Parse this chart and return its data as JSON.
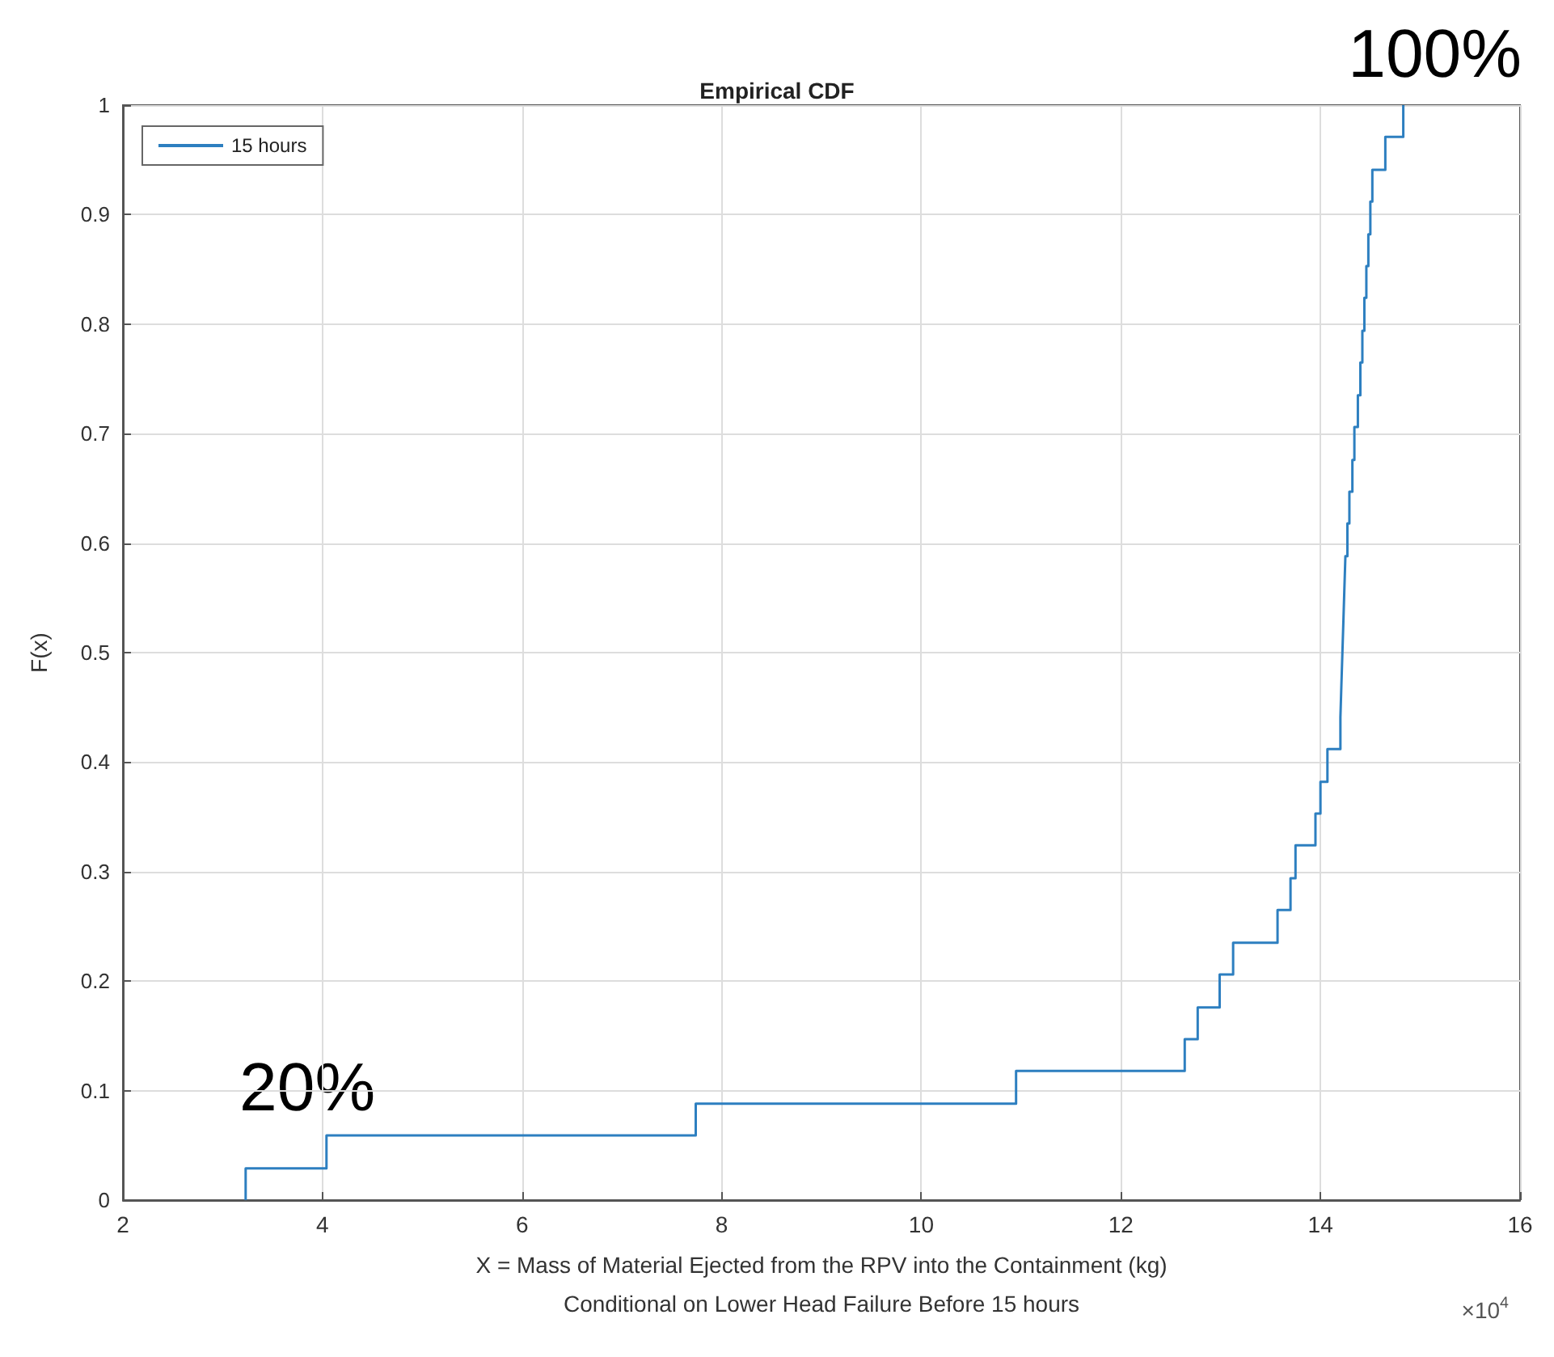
{
  "chart_data": {
    "type": "step",
    "title": "Empirical CDF",
    "xlabel": "X = Mass of Material Ejected from the RPV into the Containment (kg)\nConditional on Lower Head Failure Before 15 hours",
    "ylabel": "F(x)",
    "annotations": [
      "20%",
      "100%",
      "×10$^{4}$"
    ],
    "series": [
      {
        "name": "15 hours",
        "color": "#2d7fc0",
        "x": [
          3.23,
          3.23,
          4.04,
          7.74,
          10.95,
          12.64,
          12.77,
          12.99,
          13.125,
          13.57,
          13.7,
          13.75,
          13.95,
          14.0,
          14.07,
          14.2,
          14.21,
          14.22,
          14.23,
          14.24,
          14.25,
          14.27,
          14.29,
          14.32,
          14.34,
          14.375,
          14.4,
          14.42,
          14.44,
          14.46,
          14.48,
          14.5,
          14.52,
          14.65,
          14.83
        ],
        "values": [
          0,
          0.029,
          0.059,
          0.088,
          0.118,
          0.147,
          0.176,
          0.206,
          0.235,
          0.265,
          0.294,
          0.324,
          0.353,
          0.382,
          0.412,
          0.441,
          0.471,
          0.5,
          0.529,
          0.559,
          0.588,
          0.618,
          0.647,
          0.676,
          0.706,
          0.735,
          0.765,
          0.794,
          0.824,
          0.853,
          0.882,
          0.912,
          0.941,
          0.971,
          1.0
        ]
      }
    ],
    "xlim": [
      2,
      16
    ],
    "xticks": [
      2,
      4,
      6,
      8,
      10,
      12,
      14,
      16
    ],
    "ylim": [
      0,
      1
    ],
    "yticks": [
      0,
      0.1,
      0.2,
      0.3,
      0.4,
      0.5,
      0.6,
      0.7,
      0.8,
      0.9,
      1
    ],
    "grid": true,
    "legend": "top left",
    "line_style": "solid",
    "marker": "none"
  }
}
